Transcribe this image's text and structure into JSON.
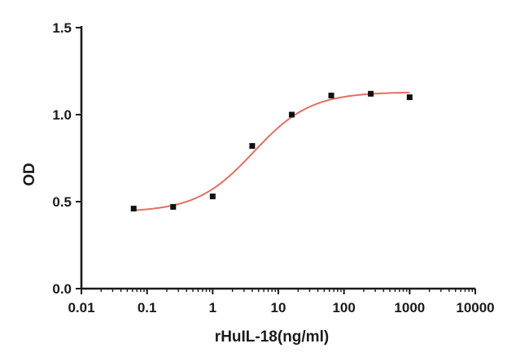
{
  "chart_data": {
    "type": "scatter",
    "title": "",
    "xlabel": "rHuIL-18(ng/ml)",
    "ylabel": "OD",
    "x_scale": "log",
    "xlim": [
      0.01,
      10000
    ],
    "ylim": [
      0.0,
      1.5
    ],
    "x_ticks": [
      0.01,
      0.1,
      1,
      10,
      100,
      1000,
      10000
    ],
    "x_tick_labels": [
      "0.01",
      "0.1",
      "1",
      "10",
      "100",
      "1000",
      "10000"
    ],
    "y_ticks": [
      0.0,
      0.5,
      1.0,
      1.5
    ],
    "y_tick_labels": [
      "0.0",
      "0.5",
      "1.0",
      "1.5"
    ],
    "grid": false,
    "series": [
      {
        "x": [
          0.0625,
          0.25,
          1,
          4,
          16,
          64,
          256,
          1000
        ],
        "y": [
          0.46,
          0.47,
          0.53,
          0.82,
          1.0,
          1.11,
          1.12,
          1.1
        ],
        "marker_color": "#111111",
        "fit_curve": {
          "model": "4PL",
          "bottom": 0.44,
          "top": 1.13,
          "ec50": 4.2,
          "hill": 1.0,
          "x_range": [
            0.0625,
            1000
          ],
          "color": "#e07060"
        }
      }
    ]
  }
}
